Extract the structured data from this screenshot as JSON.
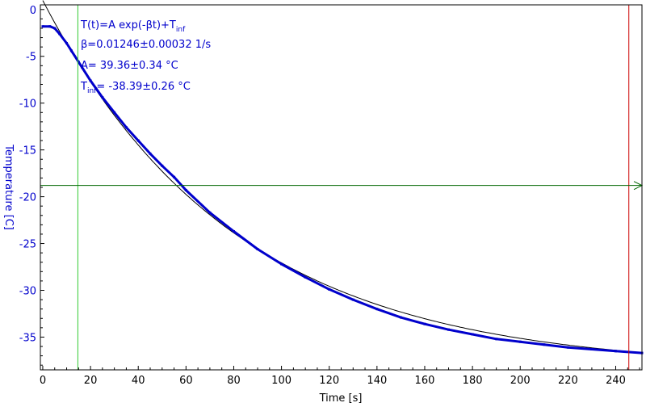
{
  "chart_data": {
    "type": "line",
    "xlabel": "Time [s]",
    "ylabel": "Temperature [C]",
    "xlim": [
      -1,
      251
    ],
    "ylim": [
      -38.5,
      0.5
    ],
    "x_ticks": [
      0,
      20,
      40,
      60,
      80,
      100,
      120,
      140,
      160,
      180,
      200,
      220,
      240
    ],
    "y_ticks": [
      0,
      -5,
      -10,
      -15,
      -20,
      -25,
      -30,
      -35
    ],
    "grid": false,
    "fit": {
      "model": "exponential",
      "beta": 0.01246,
      "A": 39.36,
      "T_inf": -38.39,
      "x_start": 0,
      "x_end": 251
    },
    "series": [
      {
        "color": "#0000cc",
        "points": [
          [
            0,
            -1.8
          ],
          [
            3,
            -1.8
          ],
          [
            5,
            -2.0
          ],
          [
            7,
            -2.6
          ],
          [
            10,
            -3.6
          ],
          [
            12,
            -4.4
          ],
          [
            15,
            -5.6
          ],
          [
            20,
            -7.6
          ],
          [
            25,
            -9.4
          ],
          [
            30,
            -11.0
          ],
          [
            35,
            -12.6
          ],
          [
            40,
            -14.0
          ],
          [
            45,
            -15.4
          ],
          [
            50,
            -16.7
          ],
          [
            55,
            -17.9
          ],
          [
            60,
            -19.3
          ],
          [
            70,
            -21.7
          ],
          [
            80,
            -23.7
          ],
          [
            90,
            -25.6
          ],
          [
            100,
            -27.2
          ],
          [
            110,
            -28.6
          ],
          [
            120,
            -29.9
          ],
          [
            130,
            -31.0
          ],
          [
            140,
            -32.0
          ],
          [
            150,
            -32.9
          ],
          [
            160,
            -33.6
          ],
          [
            170,
            -34.2
          ],
          [
            180,
            -34.7
          ],
          [
            190,
            -35.2
          ],
          [
            200,
            -35.5
          ],
          [
            210,
            -35.8
          ],
          [
            220,
            -36.1
          ],
          [
            230,
            -36.3
          ],
          [
            240,
            -36.5
          ],
          [
            251,
            -36.7
          ]
        ]
      }
    ],
    "markers": {
      "green_vertical_x": 14.7,
      "red_vertical_x": 245.5,
      "green_horizontal_y": -18.8
    },
    "colors": {
      "data": "#0000cc",
      "fit": "#000000",
      "green_cursor": "#33cc33",
      "red_cursor": "#cc0000",
      "horizontal_cursor": "#006600",
      "axis_text": "#000000",
      "annotation": "#0000cc"
    },
    "annotations": {
      "line1_main": "T(t)=A exp(-βt)+T",
      "line1_sub": "inf",
      "line2": "β=0.01246±0.00032 1/s",
      "line3": "A= 39.36±0.34 °C",
      "line4_main": "T",
      "line4_sub": "inf",
      "line4_rest": "= -38.39±0.26 °C"
    }
  }
}
